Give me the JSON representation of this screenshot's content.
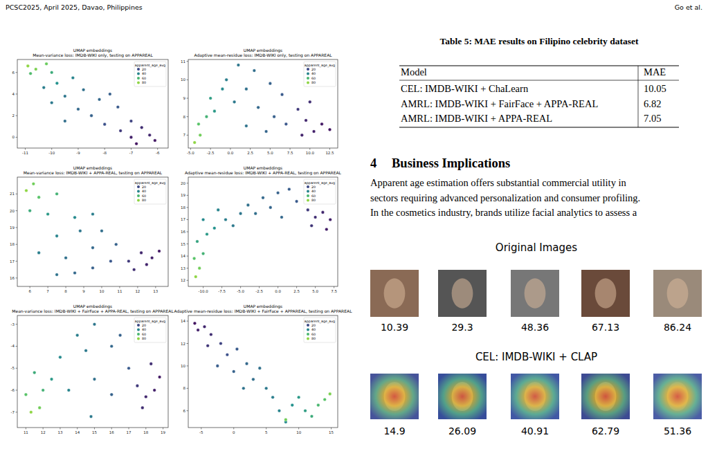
{
  "header": {
    "left": "PCSC2025, April 2025, Davao, Philippines",
    "right": "Go et al."
  },
  "chart_data": [
    {
      "type": "scatter",
      "title": "UMAP embeddings",
      "subtitle": "Mean-variance loss: IMDB-WIKI only, testing on APPAREAL",
      "xlim": [
        -11.3,
        -5.6
      ],
      "ylim": [
        -1,
        7.2
      ],
      "xticks": [
        -11,
        -10,
        -9,
        -8,
        -7,
        -6
      ],
      "yticks": [
        0,
        2,
        4,
        6
      ],
      "legend": "upper right",
      "hue_title": "apparent_age_avg",
      "hue_ticks": [
        20,
        40,
        60,
        80
      ],
      "hue_range": [
        0,
        90
      ],
      "series": [
        {
          "x": [
            -10.9,
            -10.6,
            -10.2,
            -10.8,
            -10.0,
            -9.8,
            -9.2,
            -10.3,
            -9.5,
            -8.8,
            -9.0,
            -8.2,
            -10.0,
            -8.5,
            -7.8,
            -7.5,
            -8.0,
            -9.5,
            -7.0,
            -6.6,
            -6.3,
            -7.0,
            -6.1,
            -7.4,
            -6.8
          ],
          "y": [
            6.6,
            6.3,
            6.8,
            5.9,
            6.0,
            5.0,
            5.5,
            4.6,
            3.8,
            4.4,
            2.6,
            3.5,
            3.2,
            2.0,
            4.0,
            2.8,
            1.2,
            1.5,
            1.5,
            0.9,
            0.2,
            0.0,
            -0.3,
            0.6,
            -0.6
          ],
          "age": [
            80,
            75,
            70,
            62,
            55,
            45,
            40,
            38,
            35,
            33,
            30,
            30,
            36,
            28,
            27,
            25,
            22,
            32,
            18,
            12,
            10,
            8,
            6,
            15,
            5
          ]
        }
      ]
    },
    {
      "type": "scatter",
      "title": "UMAP embeddings",
      "subtitle": "Adaptive mean-residue loss: IMDB-WIKI only, testing on APPAREAL",
      "xlim": [
        -5.3,
        13.5
      ],
      "ylim": [
        6.3,
        11.1
      ],
      "xticks": [
        {
          "value": -5,
          "label": "-5.0"
        },
        -2.5,
        {
          "value": 0,
          "label": "0.0"
        },
        2.5,
        {
          "value": 5,
          "label": "5.0"
        },
        7.5,
        {
          "value": 10,
          "label": "10.0"
        },
        12.5
      ],
      "yticks": [
        7,
        8,
        9,
        10,
        11
      ],
      "legend": "upper right",
      "hue_title": "apparent_age_avg",
      "hue_ticks": [
        20,
        40,
        60,
        80
      ],
      "hue_range": [
        0,
        90
      ],
      "series": [
        {
          "x": [
            -4.5,
            -3.8,
            -4.0,
            -3.0,
            -2.5,
            -2.0,
            -1.0,
            -0.5,
            1.0,
            0.5,
            2.0,
            3.0,
            3.5,
            2.0,
            5.0,
            5.5,
            6.5,
            7.0,
            4.5,
            8.5,
            9.5,
            10.5,
            11.5,
            12.5,
            10.0,
            9.0
          ],
          "y": [
            6.6,
            7.0,
            7.6,
            8.0,
            9.0,
            8.3,
            9.5,
            10.0,
            10.8,
            8.8,
            9.5,
            10.5,
            8.5,
            7.5,
            9.8,
            8.0,
            9.2,
            7.6,
            7.2,
            8.4,
            7.8,
            7.2,
            7.6,
            7.3,
            8.8,
            7.0
          ],
          "age": [
            80,
            72,
            65,
            58,
            50,
            48,
            42,
            38,
            35,
            36,
            33,
            32,
            30,
            34,
            28,
            27,
            25,
            24,
            29,
            15,
            10,
            8,
            6,
            5,
            12,
            9
          ]
        }
      ]
    },
    {
      "type": "scatter",
      "title": "UMAP embeddings",
      "subtitle": "Mean-variance loss: IMDB-WIKI + APPA-REAL, testing on APPAREAL",
      "xlim": [
        5.3,
        13.7
      ],
      "ylim": [
        15.5,
        22
      ],
      "xticks": [
        6,
        7,
        8,
        9,
        10,
        11,
        12,
        13
      ],
      "yticks": [
        16,
        17,
        18,
        19,
        20,
        21
      ],
      "legend": "upper right",
      "hue_title": "apparent_age_avg",
      "hue_ticks": [
        20,
        40,
        60,
        80
      ],
      "hue_range": [
        0,
        90
      ],
      "series": [
        {
          "x": [
            5.8,
            6.2,
            6.5,
            7.5,
            6.0,
            7.0,
            8.5,
            9.5,
            7.5,
            8.8,
            10.0,
            6.5,
            8.0,
            9.5,
            10.8,
            8.5,
            9.5,
            10.5,
            7.5,
            11.5,
            12.2,
            12.8,
            13.2,
            11.8,
            12.5
          ],
          "y": [
            21.2,
            21.6,
            20.8,
            21.0,
            20.0,
            19.8,
            19.6,
            19.8,
            18.5,
            18.8,
            18.8,
            17.5,
            17.2,
            17.8,
            18.0,
            16.3,
            16.6,
            17.0,
            16.2,
            17.0,
            17.5,
            17.2,
            17.6,
            16.5,
            16.8
          ],
          "age": [
            80,
            72,
            65,
            58,
            55,
            48,
            42,
            38,
            40,
            35,
            32,
            38,
            33,
            30,
            28,
            30,
            27,
            24,
            34,
            15,
            10,
            8,
            6,
            12,
            9
          ]
        }
      ]
    },
    {
      "type": "scatter",
      "title": "UMAP embeddings",
      "subtitle": "Adaptive mean-residue loss: IMDB-WIKI + APPA-REAL, testing on APPAREAL",
      "xlim": [
        -12,
        8
      ],
      "ylim": [
        11.5,
        20.5
      ],
      "xticks": [
        {
          "value": -10,
          "label": "-10.0"
        },
        -7.5,
        {
          "value": -5,
          "label": "-5.0"
        },
        -2.5,
        {
          "value": 0,
          "label": "0.0"
        },
        2.5,
        {
          "value": 5,
          "label": "5.0"
        },
        7.5
      ],
      "yticks": [
        12,
        13,
        14,
        15,
        16,
        17,
        18,
        19,
        20
      ],
      "legend": "upper right",
      "hue_title": "apparent_age_avg",
      "hue_ticks": [
        20,
        40,
        60,
        80
      ],
      "hue_range": [
        0,
        90
      ],
      "series": [
        {
          "x": [
            -11.0,
            -10.5,
            -11.2,
            -10.0,
            -10.8,
            -9.5,
            -8.5,
            -10.0,
            -8.0,
            -7.0,
            -6.0,
            -5.0,
            -4.0,
            -3.0,
            -2.0,
            -1.0,
            0.0,
            0.5,
            1.5,
            2.5,
            4.0,
            5.0,
            6.0,
            7.0,
            4.5,
            6.5
          ],
          "y": [
            12.3,
            13.0,
            13.8,
            14.2,
            15.2,
            15.8,
            16.3,
            17.0,
            17.8,
            17.0,
            16.5,
            17.5,
            18.2,
            17.5,
            18.8,
            18.0,
            19.2,
            17.2,
            19.5,
            18.5,
            17.8,
            17.2,
            17.6,
            17.0,
            16.5,
            16.2
          ],
          "age": [
            80,
            72,
            65,
            58,
            52,
            48,
            45,
            42,
            40,
            38,
            36,
            35,
            33,
            32,
            30,
            29,
            28,
            30,
            26,
            25,
            15,
            12,
            10,
            8,
            14,
            7
          ]
        }
      ]
    },
    {
      "type": "scatter",
      "title": "UMAP embeddings",
      "subtitle": "Mean-variance loss: IMDB-WIKI + FairFace + APPA-REAL, testing on APPAREAL",
      "xlim": [
        10.5,
        19.3
      ],
      "ylim": [
        -7.7,
        -2.6
      ],
      "xticks": [
        11,
        12,
        13,
        14,
        15,
        16,
        17,
        18,
        19
      ],
      "yticks": [
        -7,
        -6,
        -5,
        -4,
        -3
      ],
      "legend": "upper right",
      "hue_title": "apparent_age_avg",
      "hue_ticks": [
        20,
        40,
        60,
        80
      ],
      "hue_range": [
        0,
        90
      ],
      "series": [
        {
          "x": [
            11.3,
            11.8,
            11.0,
            12.0,
            11.5,
            12.5,
            13.0,
            14.0,
            14.5,
            15.0,
            13.5,
            15.0,
            16.0,
            14.8,
            16.0,
            17.0,
            16.5,
            17.5,
            18.0,
            18.5,
            18.8,
            17.8,
            18.3
          ],
          "y": [
            -7.0,
            -6.8,
            -6.2,
            -6.0,
            -5.2,
            -5.5,
            -4.5,
            -3.5,
            -4.2,
            -3.0,
            -6.0,
            -5.5,
            -4.0,
            -7.2,
            -6.2,
            -5.0,
            -3.5,
            -5.8,
            -6.3,
            -6.0,
            -5.4,
            -6.8,
            -4.8
          ],
          "age": [
            80,
            72,
            65,
            58,
            55,
            48,
            42,
            38,
            36,
            35,
            40,
            33,
            30,
            36,
            28,
            25,
            28,
            15,
            10,
            8,
            6,
            12,
            12
          ]
        }
      ]
    },
    {
      "type": "scatter",
      "title": "UMAP embeddings",
      "subtitle": "Adaptive mean-residue loss: IMDB-WIKI + FairFace + APPAREAL, testing on APPAREAL",
      "xlim": [
        -7,
        16
      ],
      "ylim": [
        4.5,
        14.5
      ],
      "xticks": [
        -5,
        0,
        5,
        10,
        15
      ],
      "yticks": [
        6,
        8,
        10,
        12,
        14
      ],
      "legend": "upper right",
      "hue_title": "apparent_age_avg",
      "hue_ticks": [
        20,
        40,
        60,
        80
      ],
      "hue_range": [
        0,
        90
      ],
      "series": [
        {
          "x": [
            -6.0,
            -5.5,
            -4.5,
            -3.5,
            -4.0,
            -2.0,
            -1.0,
            0.5,
            -2.5,
            0.0,
            2.0,
            3.0,
            4.0,
            1.5,
            5.0,
            6.0,
            7.0,
            8.0,
            9.0,
            10.0,
            11.0,
            12.0,
            13.0,
            14.0,
            14.8,
            8.0
          ],
          "y": [
            13.8,
            13.2,
            13.5,
            12.8,
            11.8,
            12.0,
            11.0,
            11.5,
            10.0,
            9.5,
            10.2,
            8.8,
            9.8,
            8.0,
            8.0,
            7.2,
            6.0,
            5.0,
            6.5,
            7.2,
            6.0,
            5.5,
            6.5,
            7.0,
            7.5,
            5.2
          ],
          "age": [
            5,
            8,
            10,
            12,
            14,
            18,
            22,
            25,
            26,
            28,
            30,
            32,
            33,
            34,
            36,
            38,
            40,
            42,
            45,
            48,
            50,
            55,
            60,
            65,
            75,
            72
          ]
        }
      ]
    }
  ],
  "table": {
    "caption": "Table 5: MAE results on Filipino celebrity dataset",
    "columns": [
      "Model",
      "MAE"
    ],
    "rows": [
      [
        "CEL: IMDB-WIKI + ChaLearn",
        10.05
      ],
      [
        "AMRL: IMDB-WIKI + FairFace + APPA-REAL",
        6.82
      ],
      [
        "AMRL: IMDB-WIKI + APPA-REAL",
        7.05
      ]
    ]
  },
  "section": {
    "number": "4",
    "title": "Business Implications",
    "lines": [
      "Apparent age estimation offers substantial commercial utility in",
      "sectors requiring advanced personalization and consumer profiling.",
      "In the cosmetics industry, brands utilize facial analytics to assess a"
    ]
  },
  "figure": {
    "rows": [
      {
        "title": "Original Images",
        "labels": [
          10.39,
          29.3,
          48.36,
          67.13,
          86.24
        ]
      },
      {
        "title": "CEL: IMDB-WIKI + CLAP",
        "labels": [
          14.9,
          26.09,
          40.91,
          62.79,
          51.36
        ]
      }
    ]
  }
}
